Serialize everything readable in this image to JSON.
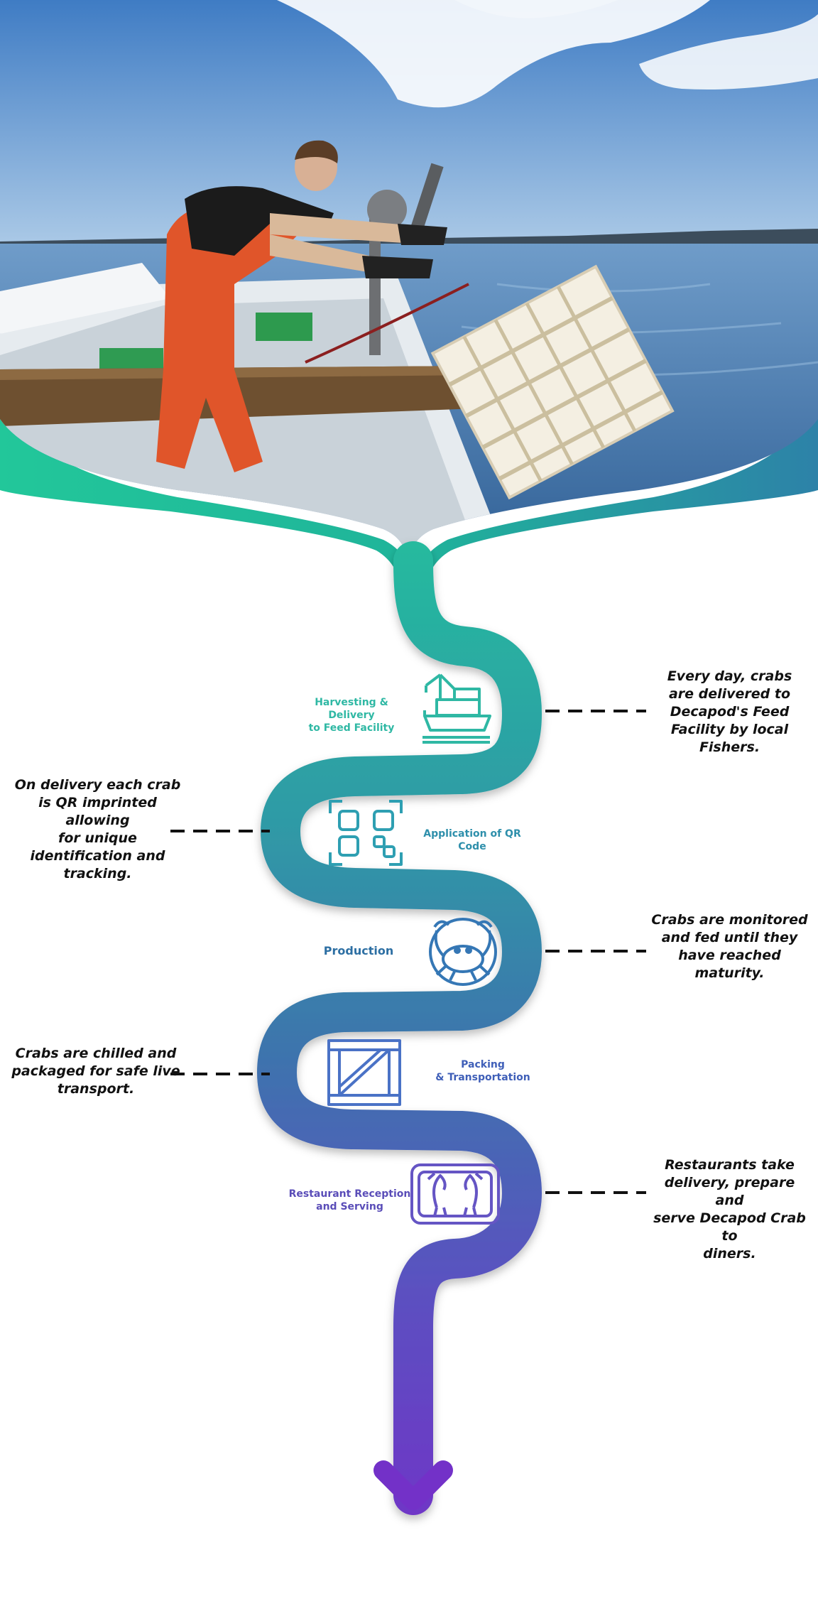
{
  "hero": {
    "photo_description": "fisherman hauling crab crates from boat"
  },
  "steps": [
    {
      "label": "Harvesting & Delivery\nto Feed Facility",
      "description": "Every day, crabs\nare delivered to\nDecapod's Feed\nFacility by local\nFishers.",
      "icon": "fishing-boat-icon",
      "color": "#2fb8a4"
    },
    {
      "label": "Application of QR Code",
      "description": "On delivery each crab\nis QR imprinted\nallowing\nfor unique\nidentification and\ntracking.",
      "icon": "qr-code-icon",
      "color": "#2e8fab"
    },
    {
      "label": "Production",
      "description": "Crabs are monitored\nand fed until they\nhave reached\nmaturity.",
      "icon": "crab-icon",
      "color": "#2d6fa3"
    },
    {
      "label": "Packing\n& Transportation",
      "description": "Crabs are chilled and\npackaged for safe live\ntransport.",
      "icon": "crate-icon",
      "color": "#3f5fb8"
    },
    {
      "label": "Restaurant Reception\nand Serving",
      "description": "Restaurants take\ndelivery, prepare and\nserve Decapod Crab to\ndiners.",
      "icon": "serving-tray-icon",
      "color": "#5a4db8"
    }
  ],
  "colors": {
    "gradient_start": "#21c79b",
    "gradient_mid": "#3d74ad",
    "gradient_end": "#7331c8",
    "sky": "#5d93cc",
    "sea": "#4f82b5"
  }
}
